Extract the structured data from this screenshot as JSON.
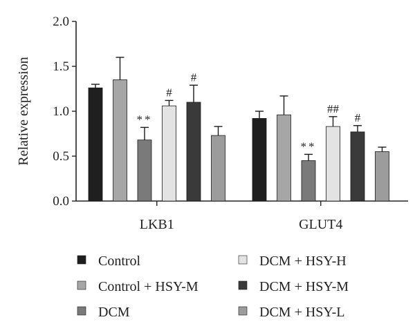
{
  "chart_data": {
    "type": "bar",
    "categories": [
      "LKB1",
      "GLUT4"
    ],
    "ylabel": "Relative expression",
    "xlabel": "",
    "ylim": [
      0,
      2.0
    ],
    "yticks": [
      "0.0",
      "0.5",
      "1.0",
      "1.5",
      "2.0"
    ],
    "grid": false,
    "legend_position": "bottom",
    "series": [
      {
        "name": "Control",
        "color": "#1f1f1f",
        "values": [
          1.26,
          0.92
        ],
        "errors": [
          0.04,
          0.08
        ],
        "annotations": [
          "",
          ""
        ]
      },
      {
        "name": "Control + HSY-M",
        "color": "#a6a6a6",
        "values": [
          1.35,
          0.96
        ],
        "errors": [
          0.25,
          0.21
        ],
        "annotations": [
          "",
          ""
        ]
      },
      {
        "name": "DCM",
        "color": "#7a7a7a",
        "values": [
          0.68,
          0.45
        ],
        "errors": [
          0.14,
          0.07
        ],
        "annotations": [
          "**",
          "**"
        ]
      },
      {
        "name": "DCM + HSY-H",
        "color": "#e3e3e3",
        "values": [
          1.06,
          0.83
        ],
        "errors": [
          0.06,
          0.11
        ],
        "annotations": [
          "#",
          "##"
        ]
      },
      {
        "name": "DCM + HSY-M",
        "color": "#3a3a3a",
        "values": [
          1.1,
          0.77
        ],
        "errors": [
          0.19,
          0.07
        ],
        "annotations": [
          "#",
          "#"
        ]
      },
      {
        "name": "DCM + HSY-L",
        "color": "#9c9c9c",
        "values": [
          0.73,
          0.55
        ],
        "errors": [
          0.1,
          0.05
        ],
        "annotations": [
          "",
          ""
        ]
      }
    ],
    "legend_order": [
      0,
      3,
      1,
      4,
      2,
      5
    ]
  }
}
